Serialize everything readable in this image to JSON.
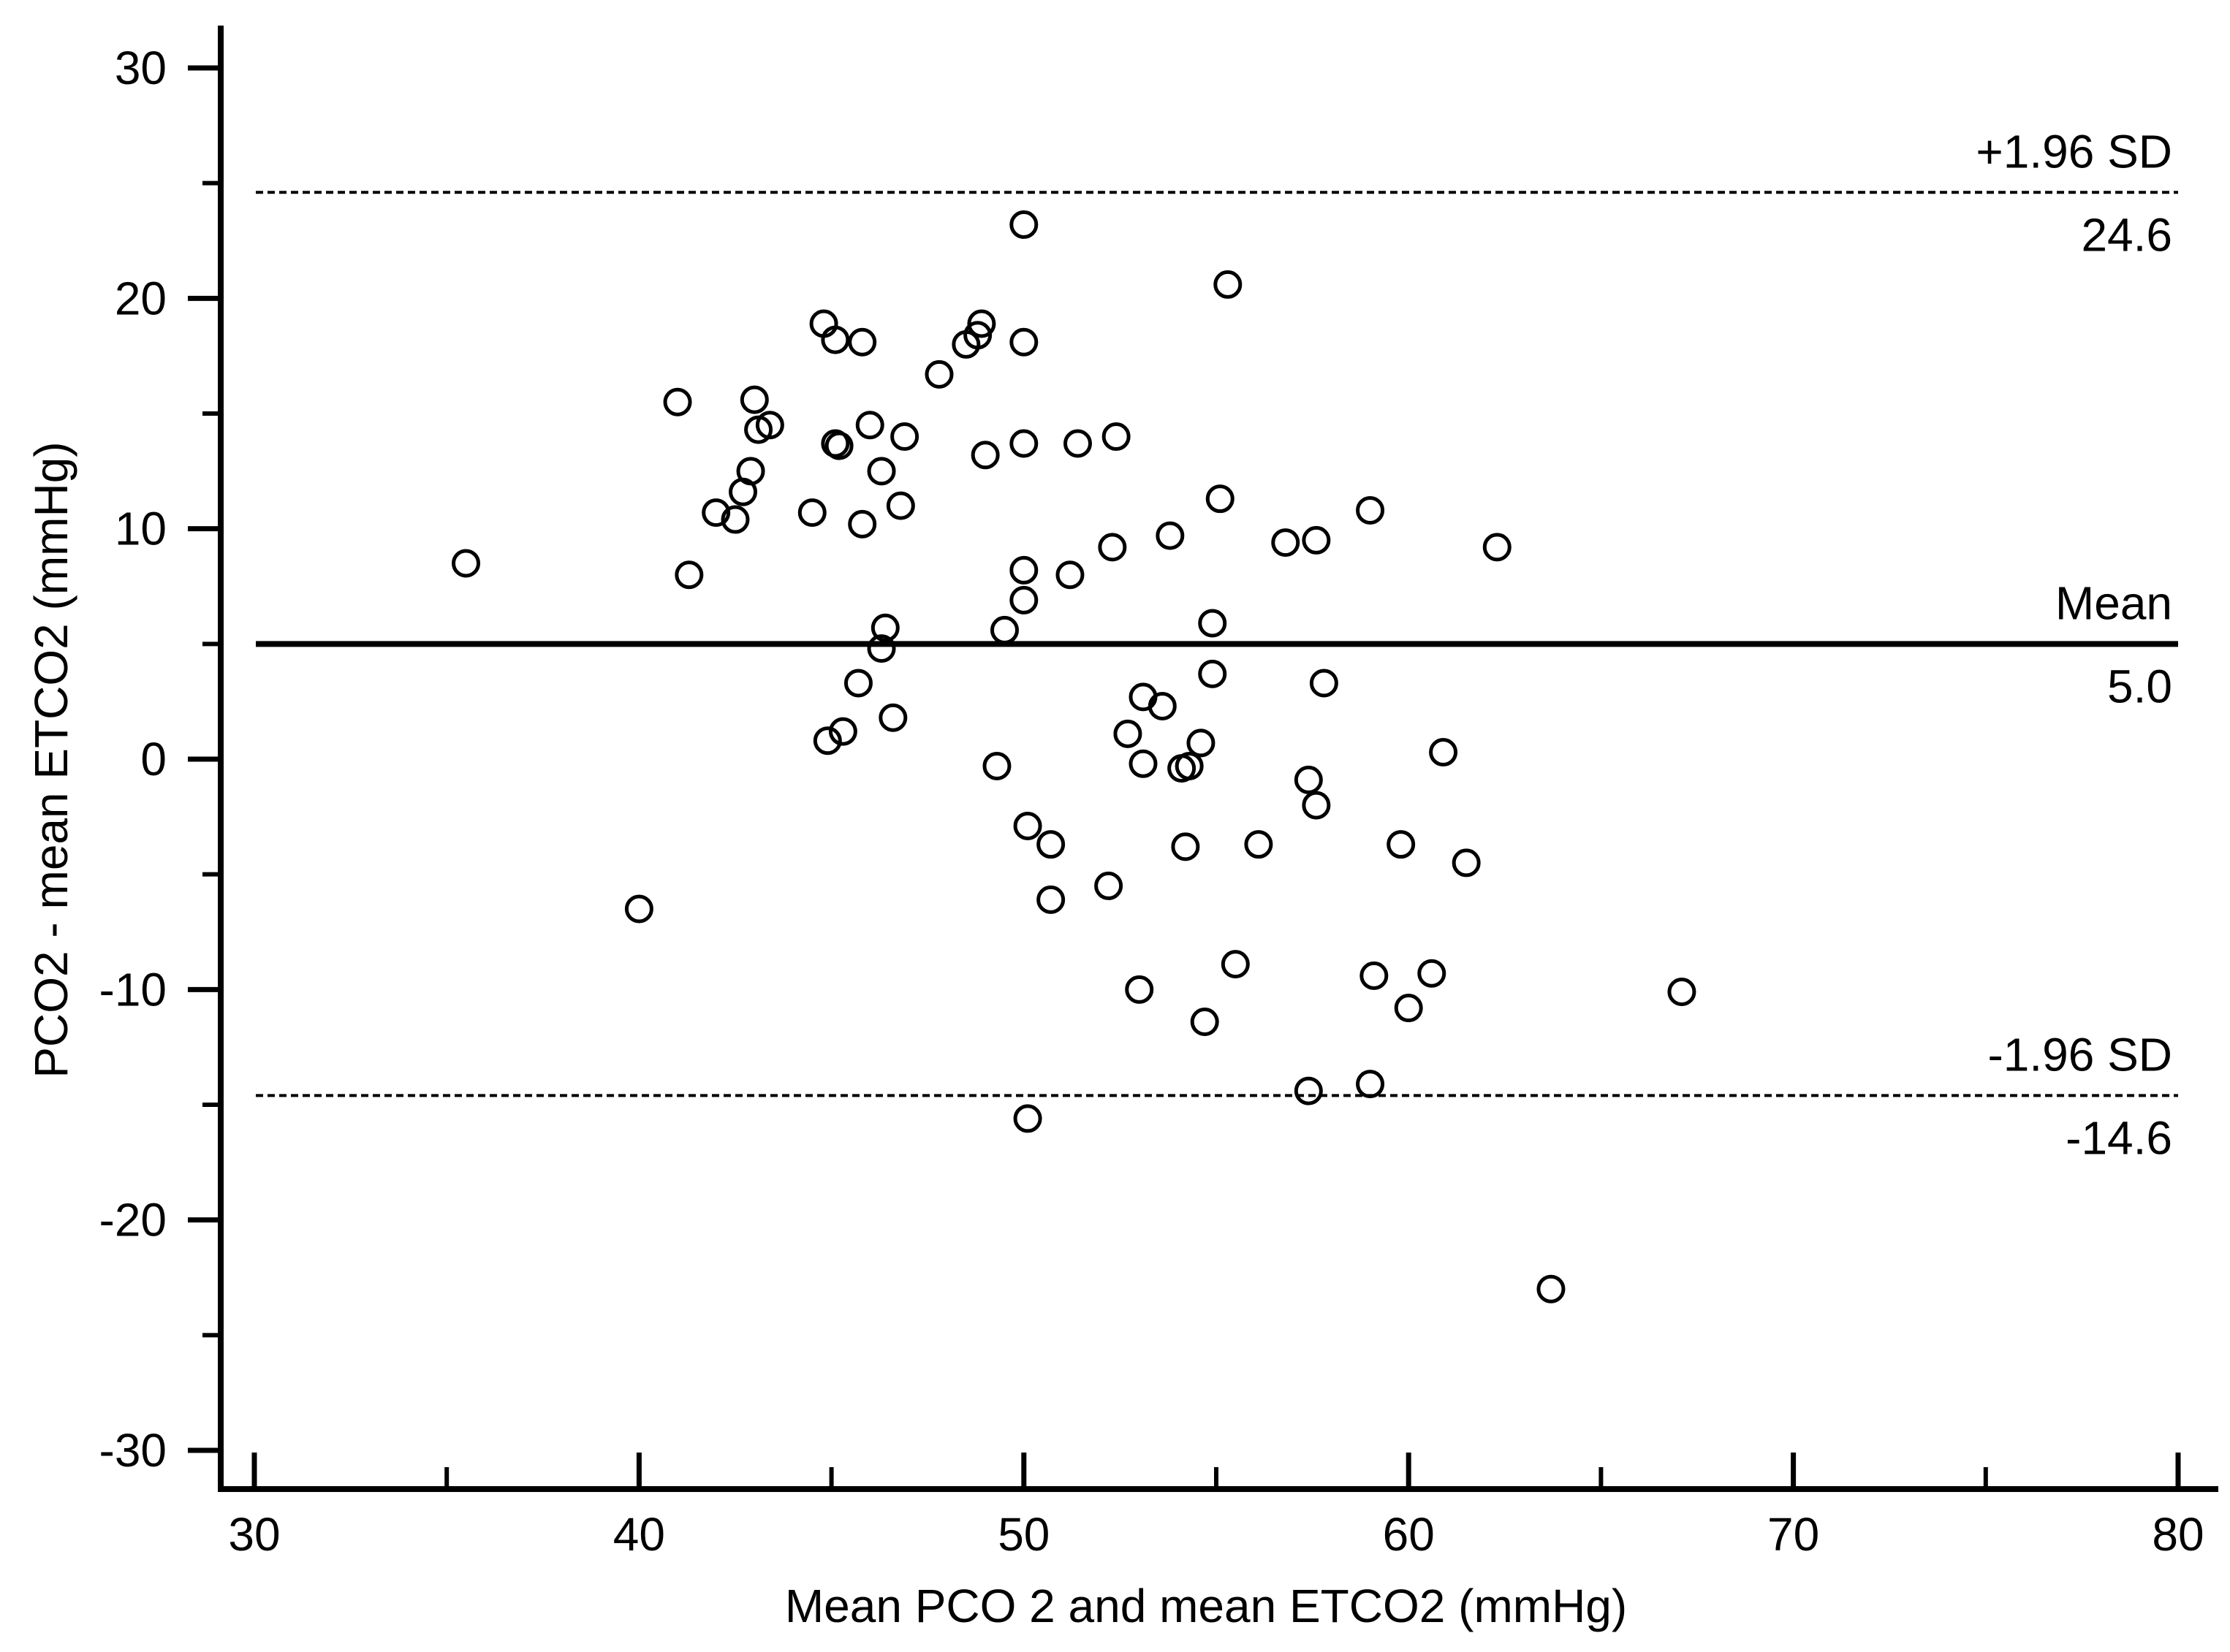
{
  "chart_data": {
    "type": "scatter",
    "title": "",
    "xlabel": "Mean PCO 2 and mean ETCO2 (mmHg)",
    "ylabel": "PCO2 - mean ETCO2 (mmHg)",
    "xlim": [
      29.5,
      81
    ],
    "ylim": [
      -32,
      32
    ],
    "x_ticks": [
      30,
      40,
      50,
      60,
      70,
      80
    ],
    "x_tick_labels": [
      "30",
      "40",
      "50",
      "60",
      "70",
      "80"
    ],
    "x_minor_ticks": [
      35,
      45,
      55,
      65,
      75
    ],
    "y_ticks": [
      30,
      20,
      10,
      0,
      -10,
      -20,
      -30
    ],
    "y_tick_labels": [
      "30",
      "20",
      "10",
      "0",
      "-10",
      "-20",
      "-30"
    ],
    "y_minor_ticks": [
      25,
      15,
      5,
      -5,
      -15,
      -25
    ],
    "grid": false,
    "reference_lines": [
      {
        "name": "upper-loa",
        "value": 24.6,
        "style": "dashed",
        "label": "+1.96 SD",
        "value_label": "24.6"
      },
      {
        "name": "mean",
        "value": 5.0,
        "style": "solid",
        "label": "Mean",
        "value_label": "5.0"
      },
      {
        "name": "lower-loa",
        "value": -14.6,
        "style": "dashed",
        "label": "-1.96 SD",
        "value_label": "-14.6"
      }
    ],
    "series": [
      {
        "name": "observations",
        "marker": "open-circle",
        "points": [
          [
            35.5,
            8.5
          ],
          [
            40.0,
            -6.5
          ],
          [
            41.0,
            15.5
          ],
          [
            41.3,
            8.0
          ],
          [
            42.0,
            10.7
          ],
          [
            42.5,
            10.4
          ],
          [
            42.7,
            11.6
          ],
          [
            42.9,
            12.5
          ],
          [
            43.0,
            15.6
          ],
          [
            43.1,
            14.3
          ],
          [
            43.4,
            14.5
          ],
          [
            44.5,
            10.7
          ],
          [
            44.8,
            18.9
          ],
          [
            44.9,
            0.8
          ],
          [
            45.1,
            18.2
          ],
          [
            45.1,
            13.7
          ],
          [
            45.2,
            13.6
          ],
          [
            45.3,
            1.2
          ],
          [
            45.7,
            3.3
          ],
          [
            45.8,
            18.1
          ],
          [
            45.8,
            10.2
          ],
          [
            46.0,
            14.5
          ],
          [
            46.3,
            12.5
          ],
          [
            46.3,
            4.8
          ],
          [
            46.4,
            5.7
          ],
          [
            46.6,
            1.8
          ],
          [
            46.8,
            11.0
          ],
          [
            46.9,
            14.0
          ],
          [
            47.8,
            16.7
          ],
          [
            48.5,
            18.0
          ],
          [
            48.8,
            18.4
          ],
          [
            48.9,
            18.9
          ],
          [
            49.0,
            13.2
          ],
          [
            49.3,
            -0.3
          ],
          [
            49.5,
            5.6
          ],
          [
            50.0,
            23.2
          ],
          [
            50.0,
            18.1
          ],
          [
            50.0,
            13.7
          ],
          [
            50.0,
            8.2
          ],
          [
            50.0,
            6.9
          ],
          [
            50.1,
            -2.9
          ],
          [
            50.1,
            -15.6
          ],
          [
            50.7,
            -3.7
          ],
          [
            50.7,
            -6.1
          ],
          [
            51.2,
            8.0
          ],
          [
            51.4,
            13.7
          ],
          [
            52.2,
            -5.5
          ],
          [
            52.3,
            9.2
          ],
          [
            52.4,
            14.0
          ],
          [
            52.7,
            1.1
          ],
          [
            53.0,
            -10.0
          ],
          [
            53.1,
            2.7
          ],
          [
            53.1,
            -0.2
          ],
          [
            53.6,
            2.3
          ],
          [
            53.8,
            9.7
          ],
          [
            54.1,
            -0.4
          ],
          [
            54.2,
            -3.8
          ],
          [
            54.3,
            -0.3
          ],
          [
            54.6,
            0.7
          ],
          [
            54.7,
            -11.4
          ],
          [
            54.9,
            5.9
          ],
          [
            54.9,
            3.7
          ],
          [
            55.1,
            11.3
          ],
          [
            55.3,
            20.6
          ],
          [
            55.5,
            -8.9
          ],
          [
            56.1,
            -3.7
          ],
          [
            56.8,
            9.4
          ],
          [
            57.4,
            -0.9
          ],
          [
            57.4,
            -14.4
          ],
          [
            57.6,
            9.5
          ],
          [
            57.6,
            -2.0
          ],
          [
            57.8,
            3.3
          ],
          [
            59.0,
            10.8
          ],
          [
            59.0,
            -14.1
          ],
          [
            59.1,
            -9.4
          ],
          [
            59.8,
            -3.7
          ],
          [
            60.0,
            -10.8
          ],
          [
            60.6,
            -9.3
          ],
          [
            60.9,
            0.3
          ],
          [
            61.5,
            -4.5
          ],
          [
            62.3,
            9.2
          ],
          [
            63.7,
            -23.0
          ],
          [
            67.1,
            -10.1
          ]
        ]
      }
    ]
  }
}
